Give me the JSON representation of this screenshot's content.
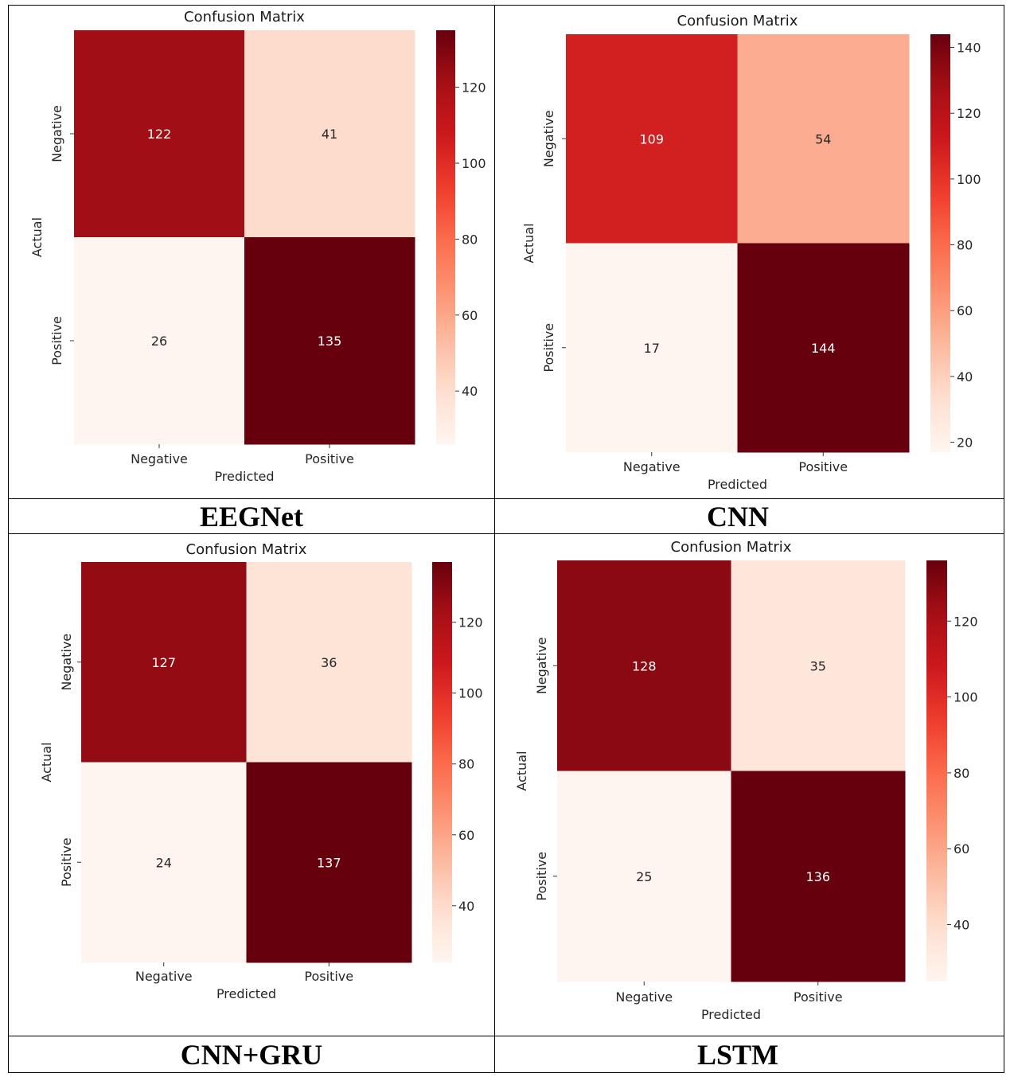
{
  "panels": [
    {
      "model": "EEGNet",
      "chart_data": {
        "type": "heatmap",
        "title": "Confusion Matrix",
        "xlabel": "Predicted",
        "ylabel": "Actual",
        "x_categories": [
          "Negative",
          "Positive"
        ],
        "y_categories": [
          "Negative",
          "Positive"
        ],
        "values": [
          [
            122,
            41
          ],
          [
            26,
            135
          ]
        ],
        "colormap": "Reds",
        "colorbar_range": [
          26,
          135
        ],
        "colorbar_ticks": [
          40,
          60,
          80,
          100,
          120
        ]
      }
    },
    {
      "model": "CNN",
      "chart_data": {
        "type": "heatmap",
        "title": "Confusion Matrix",
        "xlabel": "Predicted",
        "ylabel": "Actual",
        "x_categories": [
          "Negative",
          "Positive"
        ],
        "y_categories": [
          "Negative",
          "Positive"
        ],
        "values": [
          [
            109,
            54
          ],
          [
            17,
            144
          ]
        ],
        "colormap": "Reds",
        "colorbar_range": [
          17,
          144
        ],
        "colorbar_ticks": [
          20,
          40,
          60,
          80,
          100,
          120,
          140
        ]
      }
    },
    {
      "model": "CNN+GRU",
      "chart_data": {
        "type": "heatmap",
        "title": "Confusion Matrix",
        "xlabel": "Predicted",
        "ylabel": "Actual",
        "x_categories": [
          "Negative",
          "Positive"
        ],
        "y_categories": [
          "Negative",
          "Positive"
        ],
        "values": [
          [
            127,
            36
          ],
          [
            24,
            137
          ]
        ],
        "colormap": "Reds",
        "colorbar_range": [
          24,
          137
        ],
        "colorbar_ticks": [
          40,
          60,
          80,
          100,
          120
        ]
      }
    },
    {
      "model": "LSTM",
      "chart_data": {
        "type": "heatmap",
        "title": "Confusion Matrix",
        "xlabel": "Predicted",
        "ylabel": "Actual",
        "x_categories": [
          "Negative",
          "Positive"
        ],
        "y_categories": [
          "Negative",
          "Positive"
        ],
        "values": [
          [
            128,
            35
          ],
          [
            25,
            136
          ]
        ],
        "colormap": "Reds",
        "colorbar_range": [
          25,
          136
        ],
        "colorbar_ticks": [
          40,
          60,
          80,
          100,
          120
        ]
      }
    }
  ]
}
